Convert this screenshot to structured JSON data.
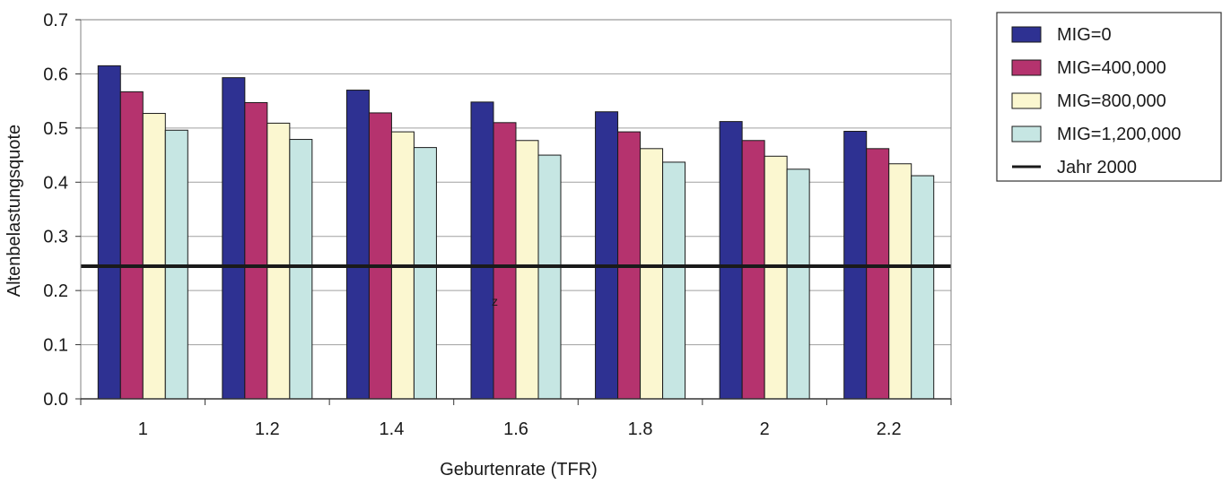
{
  "chart_data": {
    "type": "bar",
    "xlabel": "Geburtenrate (TFR)",
    "ylabel": "Altenbelastungsquote",
    "categories": [
      "1",
      "1.2",
      "1.4",
      "1.6",
      "1.8",
      "2",
      "2.2"
    ],
    "ylim": [
      0,
      0.7
    ],
    "yticks": [
      "0.0",
      "0.1",
      "0.2",
      "0.3",
      "0.4",
      "0.5",
      "0.6",
      "0.7"
    ],
    "grid": true,
    "legend_position": "right",
    "series": [
      {
        "name": "MIG=0",
        "color": "#2e3192",
        "values": [
          0.615,
          0.593,
          0.57,
          0.548,
          0.53,
          0.512,
          0.494
        ]
      },
      {
        "name": "MIG=400,000",
        "color": "#b5336e",
        "values": [
          0.567,
          0.547,
          0.528,
          0.51,
          0.493,
          0.477,
          0.462
        ]
      },
      {
        "name": "MIG=800,000",
        "color": "#fbf7d0",
        "values": [
          0.527,
          0.509,
          0.493,
          0.477,
          0.462,
          0.448,
          0.434
        ]
      },
      {
        "name": "MIG=1,200,000",
        "color": "#c6e6e3",
        "values": [
          0.496,
          0.479,
          0.464,
          0.45,
          0.437,
          0.424,
          0.412
        ]
      }
    ],
    "reference_line": {
      "name": "Jahr 2000",
      "value": 0.245,
      "color": "#1a1a1a"
    },
    "annotations": [
      "z"
    ]
  }
}
